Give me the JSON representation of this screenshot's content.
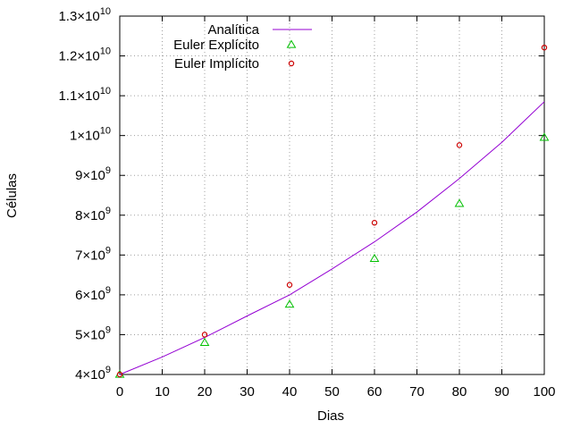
{
  "chart_data": {
    "type": "line",
    "xlabel": "Dias",
    "ylabel": "Células",
    "xlim": [
      0,
      100
    ],
    "ylim": [
      4000000000,
      13000000000
    ],
    "x_ticks": [
      {
        "value": 0,
        "label": "0"
      },
      {
        "value": 10,
        "label": "10"
      },
      {
        "value": 20,
        "label": "20"
      },
      {
        "value": 30,
        "label": "30"
      },
      {
        "value": 40,
        "label": "40"
      },
      {
        "value": 50,
        "label": "50"
      },
      {
        "value": 60,
        "label": "60"
      },
      {
        "value": 70,
        "label": "70"
      },
      {
        "value": 80,
        "label": "80"
      },
      {
        "value": 90,
        "label": "90"
      },
      {
        "value": 100,
        "label": "100"
      }
    ],
    "y_ticks": [
      {
        "value": 4000000000,
        "mantissa": "4×10",
        "exp": "9"
      },
      {
        "value": 5000000000,
        "mantissa": "5×10",
        "exp": "9"
      },
      {
        "value": 6000000000,
        "mantissa": "6×10",
        "exp": "9"
      },
      {
        "value": 7000000000,
        "mantissa": "7×10",
        "exp": "9"
      },
      {
        "value": 8000000000,
        "mantissa": "8×10",
        "exp": "9"
      },
      {
        "value": 9000000000,
        "mantissa": "9×10",
        "exp": "9"
      },
      {
        "value": 10000000000,
        "mantissa": "1×10",
        "exp": "10"
      },
      {
        "value": 11000000000,
        "mantissa": "1.1×10",
        "exp": "10"
      },
      {
        "value": 12000000000,
        "mantissa": "1.2×10",
        "exp": "10"
      },
      {
        "value": 13000000000,
        "mantissa": "1.3×10",
        "exp": "10"
      }
    ],
    "grid": true,
    "legend_position": "top-left",
    "series": [
      {
        "name": "Analítica",
        "style": "line",
        "color": "#9400d3",
        "x": [
          0,
          10,
          20,
          30,
          40,
          50,
          60,
          70,
          80,
          90,
          100
        ],
        "y": [
          4000000000,
          4440000000,
          4930000000,
          5470000000,
          6000000000,
          6650000000,
          7330000000,
          8080000000,
          8920000000,
          9830000000,
          10850000000
        ]
      },
      {
        "name": "Euler Explícito",
        "style": "triangle",
        "color": "#00c000",
        "x": [
          0,
          20,
          40,
          60,
          80,
          100
        ],
        "y": [
          4000000000,
          4800000000,
          5760000000,
          6910000000,
          8290000000,
          9950000000
        ]
      },
      {
        "name": "Euler Implícito",
        "style": "circle",
        "color": "#cc0000",
        "x": [
          0,
          20,
          40,
          60,
          80,
          100
        ],
        "y": [
          4000000000,
          5000000000,
          6250000000,
          7810000000,
          9760000000,
          12210000000
        ]
      }
    ]
  }
}
